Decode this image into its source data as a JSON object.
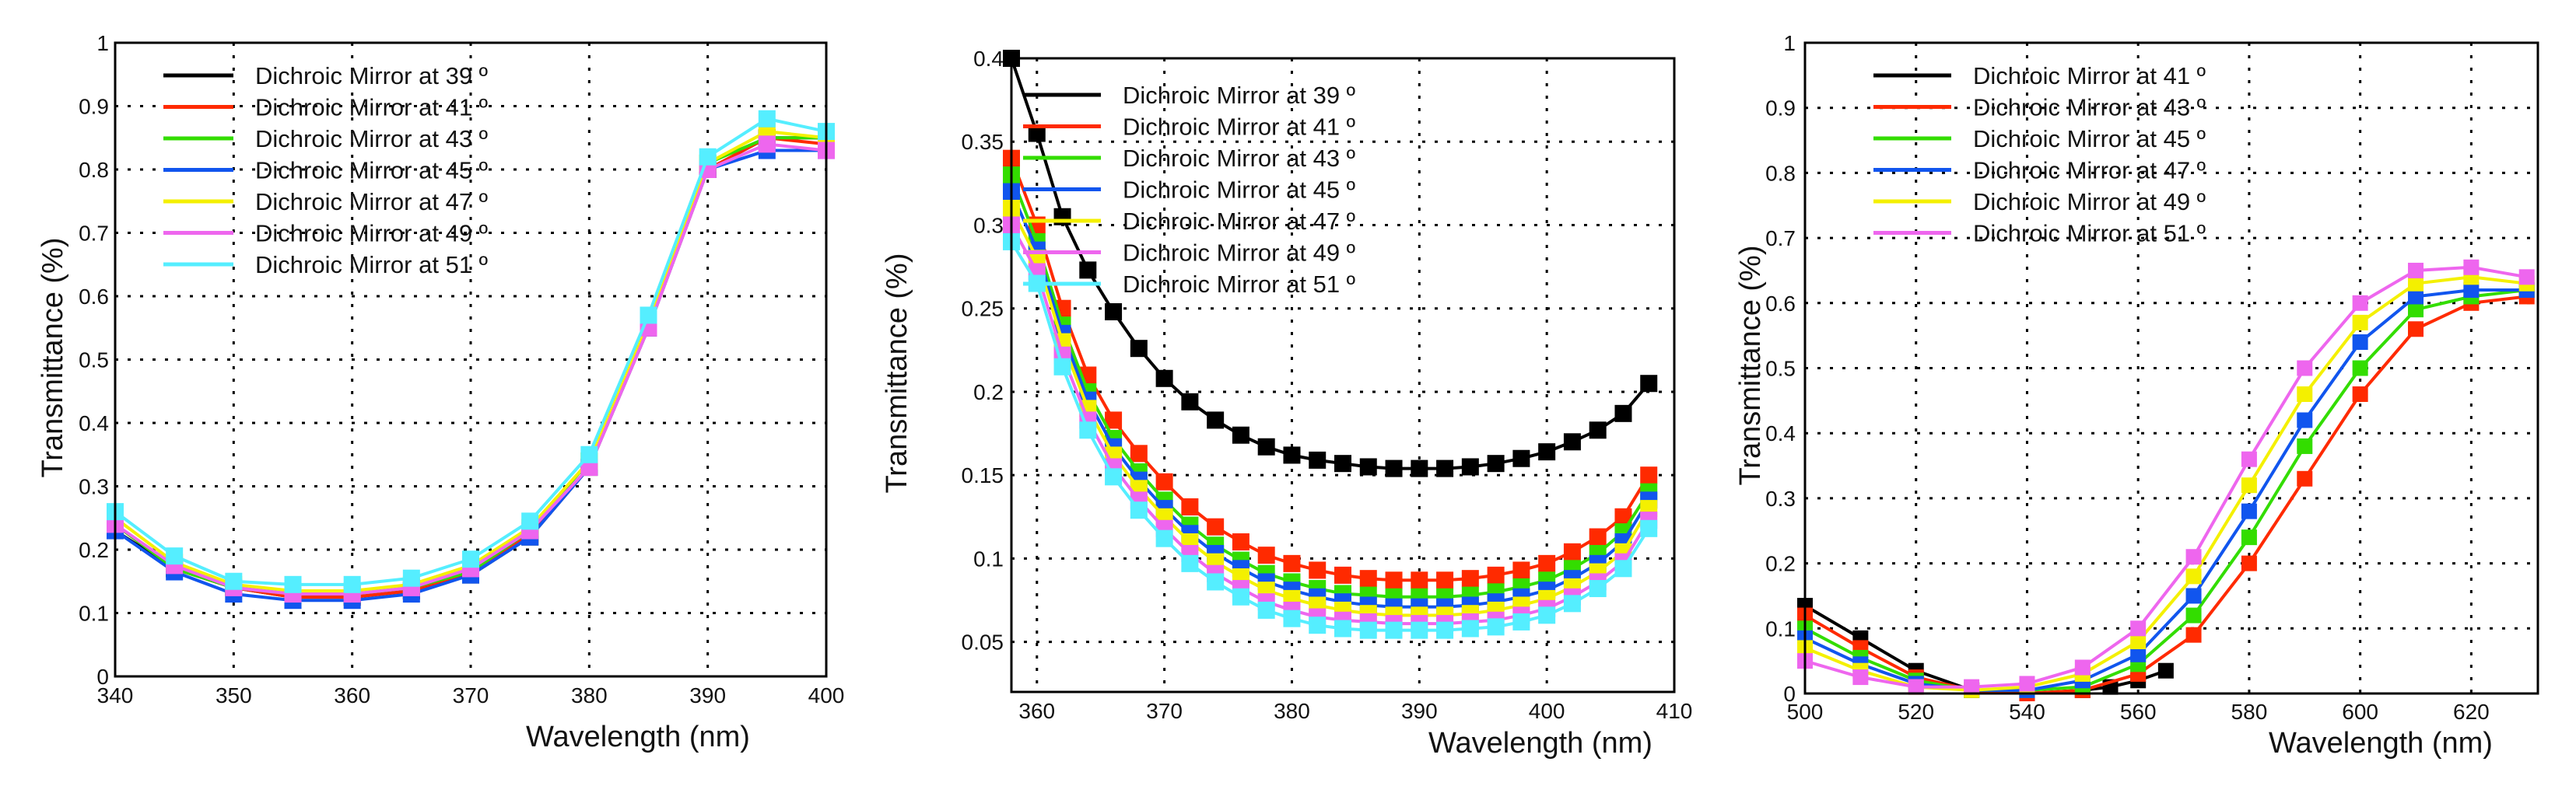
{
  "chart_data": [
    {
      "type": "line",
      "xlabel": "Wavelength (nm)",
      "ylabel": "Transmittance (%)",
      "xlim": [
        340,
        400
      ],
      "ylim": [
        0,
        1
      ],
      "xticks": [
        340,
        350,
        360,
        370,
        380,
        390,
        400
      ],
      "xtick_labels": [
        "340",
        "350",
        "360",
        "370",
        "380",
        "390",
        "400"
      ],
      "yticks": [
        0,
        0.1,
        0.2,
        0.3,
        0.4,
        0.5,
        0.6,
        0.7,
        0.8,
        0.9,
        1
      ],
      "ytick_labels": [
        "0",
        "0.1",
        "0.2",
        "0.3",
        "0.4",
        "0.5",
        "0.6",
        "0.7",
        "0.8",
        "0.9",
        "1"
      ],
      "grid": true,
      "legend_position": "top-left",
      "marker": "square",
      "series": [
        {
          "name": "Dichroic Mirror at 39 º",
          "color": "#000000",
          "x": [
            340,
            345,
            350,
            355,
            360,
            365,
            370,
            375,
            380,
            385,
            390,
            395,
            400
          ],
          "y": [
            0.23,
            0.17,
            0.14,
            0.125,
            0.125,
            0.135,
            0.16,
            0.22,
            0.33,
            0.56,
            0.8,
            0.85,
            0.85
          ]
        },
        {
          "name": "Dichroic Mirror at 41 º",
          "color": "#ff2a00",
          "x": [
            340,
            345,
            350,
            355,
            360,
            365,
            370,
            375,
            380,
            385,
            390,
            395,
            400
          ],
          "y": [
            0.24,
            0.17,
            0.14,
            0.125,
            0.125,
            0.135,
            0.165,
            0.225,
            0.33,
            0.55,
            0.8,
            0.85,
            0.84
          ]
        },
        {
          "name": "Dichroic Mirror at 43 º",
          "color": "#33dd00",
          "x": [
            340,
            345,
            350,
            355,
            360,
            365,
            370,
            375,
            380,
            385,
            390,
            395,
            400
          ],
          "y": [
            0.24,
            0.17,
            0.14,
            0.13,
            0.13,
            0.14,
            0.165,
            0.23,
            0.34,
            0.56,
            0.81,
            0.85,
            0.85
          ]
        },
        {
          "name": "Dichroic Mirror at 45 º",
          "color": "#1155ee",
          "x": [
            340,
            345,
            350,
            355,
            360,
            365,
            370,
            375,
            380,
            385,
            390,
            395,
            400
          ],
          "y": [
            0.23,
            0.165,
            0.13,
            0.12,
            0.12,
            0.13,
            0.16,
            0.22,
            0.33,
            0.55,
            0.8,
            0.83,
            0.83
          ]
        },
        {
          "name": "Dichroic Mirror at 47 º",
          "color": "#f4f000",
          "x": [
            340,
            345,
            350,
            355,
            360,
            365,
            370,
            375,
            380,
            385,
            390,
            395,
            400
          ],
          "y": [
            0.25,
            0.18,
            0.145,
            0.135,
            0.135,
            0.145,
            0.175,
            0.235,
            0.34,
            0.56,
            0.81,
            0.86,
            0.85
          ]
        },
        {
          "name": "Dichroic Mirror at 49 º",
          "color": "#ee66ee",
          "x": [
            340,
            345,
            350,
            355,
            360,
            365,
            370,
            375,
            380,
            385,
            390,
            395,
            400
          ],
          "y": [
            0.24,
            0.175,
            0.14,
            0.13,
            0.13,
            0.14,
            0.17,
            0.23,
            0.33,
            0.55,
            0.8,
            0.84,
            0.83
          ]
        },
        {
          "name": "Dichroic Mirror at 51 º",
          "color": "#55eeff",
          "x": [
            340,
            345,
            350,
            355,
            360,
            365,
            370,
            375,
            380,
            385,
            390,
            395,
            400
          ],
          "y": [
            0.26,
            0.19,
            0.15,
            0.145,
            0.145,
            0.155,
            0.185,
            0.245,
            0.35,
            0.57,
            0.82,
            0.88,
            0.86
          ]
        }
      ]
    },
    {
      "type": "line",
      "xlabel": "Wavelength (nm)",
      "ylabel": "Transmittance (%)",
      "xlim": [
        358,
        410
      ],
      "ylim": [
        0.02,
        0.4
      ],
      "xticks": [
        360,
        370,
        380,
        390,
        400,
        410
      ],
      "xtick_labels": [
        "360",
        "370",
        "380",
        "390",
        "400",
        "410"
      ],
      "yticks": [
        0.05,
        0.1,
        0.15,
        0.2,
        0.25,
        0.3,
        0.35,
        0.4
      ],
      "ytick_labels": [
        "0.05",
        "0.1",
        "0.15",
        "0.2",
        "0.25",
        "0.3",
        "0.35",
        "0.4"
      ],
      "grid": true,
      "legend_position": "top-right",
      "marker": "square",
      "series": [
        {
          "name": "Dichroic Mirror at 39 º",
          "color": "#000000",
          "x": [
            358,
            360,
            362,
            364,
            366,
            368,
            370,
            372,
            374,
            376,
            378,
            380,
            382,
            384,
            386,
            388,
            390,
            392,
            394,
            396,
            398,
            400,
            402,
            404,
            406,
            408
          ],
          "y": [
            0.4,
            0.355,
            0.305,
            0.273,
            0.248,
            0.226,
            0.208,
            0.194,
            0.183,
            0.174,
            0.167,
            0.162,
            0.159,
            0.157,
            0.155,
            0.154,
            0.154,
            0.154,
            0.155,
            0.157,
            0.16,
            0.164,
            0.17,
            0.177,
            0.187,
            0.205
          ]
        },
        {
          "name": "Dichroic Mirror at 41 º",
          "color": "#ff2a00",
          "x": [
            358,
            360,
            362,
            364,
            366,
            368,
            370,
            372,
            374,
            376,
            378,
            380,
            382,
            384,
            386,
            388,
            390,
            392,
            394,
            396,
            398,
            400,
            402,
            404,
            406,
            408
          ],
          "y": [
            0.34,
            0.3,
            0.25,
            0.21,
            0.183,
            0.163,
            0.146,
            0.131,
            0.119,
            0.11,
            0.102,
            0.097,
            0.093,
            0.09,
            0.088,
            0.087,
            0.087,
            0.087,
            0.088,
            0.09,
            0.093,
            0.097,
            0.104,
            0.113,
            0.125,
            0.15
          ]
        },
        {
          "name": "Dichroic Mirror at 43 º",
          "color": "#33dd00",
          "x": [
            358,
            360,
            362,
            364,
            366,
            368,
            370,
            372,
            374,
            376,
            378,
            380,
            382,
            384,
            386,
            388,
            390,
            392,
            394,
            396,
            398,
            400,
            402,
            404,
            406,
            408
          ],
          "y": [
            0.33,
            0.29,
            0.24,
            0.2,
            0.172,
            0.152,
            0.135,
            0.12,
            0.108,
            0.099,
            0.091,
            0.086,
            0.082,
            0.079,
            0.078,
            0.077,
            0.077,
            0.077,
            0.078,
            0.08,
            0.083,
            0.087,
            0.094,
            0.103,
            0.116,
            0.14
          ]
        },
        {
          "name": "Dichroic Mirror at 45 º",
          "color": "#1155ee",
          "x": [
            358,
            360,
            362,
            364,
            366,
            368,
            370,
            372,
            374,
            376,
            378,
            380,
            382,
            384,
            386,
            388,
            390,
            392,
            394,
            396,
            398,
            400,
            402,
            404,
            406,
            408
          ],
          "y": [
            0.32,
            0.285,
            0.235,
            0.195,
            0.167,
            0.147,
            0.13,
            0.115,
            0.103,
            0.094,
            0.086,
            0.081,
            0.077,
            0.074,
            0.072,
            0.071,
            0.071,
            0.071,
            0.072,
            0.074,
            0.077,
            0.081,
            0.088,
            0.097,
            0.11,
            0.135
          ]
        },
        {
          "name": "Dichroic Mirror at 47 º",
          "color": "#f4f000",
          "x": [
            358,
            360,
            362,
            364,
            366,
            368,
            370,
            372,
            374,
            376,
            378,
            380,
            382,
            384,
            386,
            388,
            390,
            392,
            394,
            396,
            398,
            400,
            402,
            404,
            406,
            408
          ],
          "y": [
            0.31,
            0.28,
            0.23,
            0.19,
            0.162,
            0.142,
            0.125,
            0.11,
            0.098,
            0.089,
            0.081,
            0.076,
            0.072,
            0.069,
            0.067,
            0.066,
            0.066,
            0.066,
            0.067,
            0.069,
            0.072,
            0.076,
            0.083,
            0.092,
            0.104,
            0.13
          ]
        },
        {
          "name": "Dichroic Mirror at 49 º",
          "color": "#ee66ee",
          "x": [
            358,
            360,
            362,
            364,
            366,
            368,
            370,
            372,
            374,
            376,
            378,
            380,
            382,
            384,
            386,
            388,
            390,
            392,
            394,
            396,
            398,
            400,
            402,
            404,
            406,
            408
          ],
          "y": [
            0.3,
            0.272,
            0.222,
            0.183,
            0.155,
            0.135,
            0.118,
            0.103,
            0.091,
            0.082,
            0.074,
            0.069,
            0.065,
            0.063,
            0.062,
            0.061,
            0.061,
            0.061,
            0.062,
            0.063,
            0.066,
            0.07,
            0.077,
            0.086,
            0.098,
            0.123
          ]
        },
        {
          "name": "Dichroic Mirror at 51 º",
          "color": "#55eeff",
          "x": [
            358,
            360,
            362,
            364,
            366,
            368,
            370,
            372,
            374,
            376,
            378,
            380,
            382,
            384,
            386,
            388,
            390,
            392,
            394,
            396,
            398,
            400,
            402,
            404,
            406,
            408
          ],
          "y": [
            0.29,
            0.265,
            0.215,
            0.177,
            0.149,
            0.129,
            0.112,
            0.097,
            0.086,
            0.077,
            0.069,
            0.064,
            0.06,
            0.058,
            0.057,
            0.057,
            0.057,
            0.057,
            0.058,
            0.059,
            0.062,
            0.066,
            0.073,
            0.082,
            0.094,
            0.118
          ]
        }
      ]
    },
    {
      "type": "line",
      "xlabel": "Wavelength (nm)",
      "ylabel": "Transmittance (%)",
      "xlim": [
        500,
        632
      ],
      "ylim": [
        0,
        1
      ],
      "xticks": [
        500,
        520,
        540,
        560,
        580,
        600,
        620
      ],
      "xtick_labels": [
        "500",
        "520",
        "540",
        "560",
        "580",
        "600",
        "620"
      ],
      "yticks": [
        0,
        0.1,
        0.2,
        0.3,
        0.4,
        0.5,
        0.6,
        0.7,
        0.8,
        0.9,
        1
      ],
      "ytick_labels": [
        "0",
        "0.1",
        "0.2",
        "0.3",
        "0.4",
        "0.5",
        "0.6",
        "0.7",
        "0.8",
        "0.9",
        "1"
      ],
      "grid": true,
      "legend_position": "top-left",
      "marker": "square",
      "series": [
        {
          "name": "Dichroic Mirror at 41 º",
          "color": "#000000",
          "x": [
            500,
            510,
            520,
            530,
            540,
            550,
            555,
            560,
            565
          ],
          "y": [
            0.135,
            0.085,
            0.035,
            0.005,
            0.0,
            0.005,
            0.01,
            0.02,
            0.035
          ]
        },
        {
          "name": "Dichroic Mirror at 43 º",
          "color": "#ff2a00",
          "x": [
            500,
            510,
            520,
            530,
            540,
            550,
            560,
            570,
            580,
            590,
            600,
            610,
            620,
            630
          ],
          "y": [
            0.12,
            0.07,
            0.025,
            0.005,
            0.0,
            0.005,
            0.03,
            0.09,
            0.2,
            0.33,
            0.46,
            0.56,
            0.6,
            0.61
          ]
        },
        {
          "name": "Dichroic Mirror at 45 º",
          "color": "#33dd00",
          "x": [
            500,
            510,
            520,
            530,
            540,
            550,
            560,
            570,
            580,
            590,
            600,
            610,
            620,
            630
          ],
          "y": [
            0.1,
            0.055,
            0.02,
            0.005,
            0.005,
            0.01,
            0.045,
            0.12,
            0.24,
            0.38,
            0.5,
            0.59,
            0.61,
            0.62
          ]
        },
        {
          "name": "Dichroic Mirror at 47 º",
          "color": "#1155ee",
          "x": [
            500,
            510,
            520,
            530,
            540,
            550,
            560,
            570,
            580,
            590,
            600,
            610,
            620,
            630
          ],
          "y": [
            0.085,
            0.045,
            0.015,
            0.005,
            0.005,
            0.02,
            0.06,
            0.15,
            0.28,
            0.42,
            0.54,
            0.61,
            0.62,
            0.62
          ]
        },
        {
          "name": "Dichroic Mirror at 49 º",
          "color": "#f4f000",
          "x": [
            500,
            510,
            520,
            530,
            540,
            550,
            560,
            570,
            580,
            590,
            600,
            610,
            620,
            630
          ],
          "y": [
            0.07,
            0.035,
            0.01,
            0.005,
            0.01,
            0.03,
            0.08,
            0.18,
            0.32,
            0.46,
            0.57,
            0.63,
            0.64,
            0.63
          ]
        },
        {
          "name": "Dichroic Mirror at 51 º",
          "color": "#ee66ee",
          "x": [
            500,
            510,
            520,
            530,
            540,
            550,
            560,
            570,
            580,
            590,
            600,
            610,
            620,
            630
          ],
          "y": [
            0.05,
            0.025,
            0.01,
            0.01,
            0.015,
            0.04,
            0.1,
            0.21,
            0.36,
            0.5,
            0.6,
            0.65,
            0.655,
            0.64
          ]
        }
      ]
    }
  ]
}
